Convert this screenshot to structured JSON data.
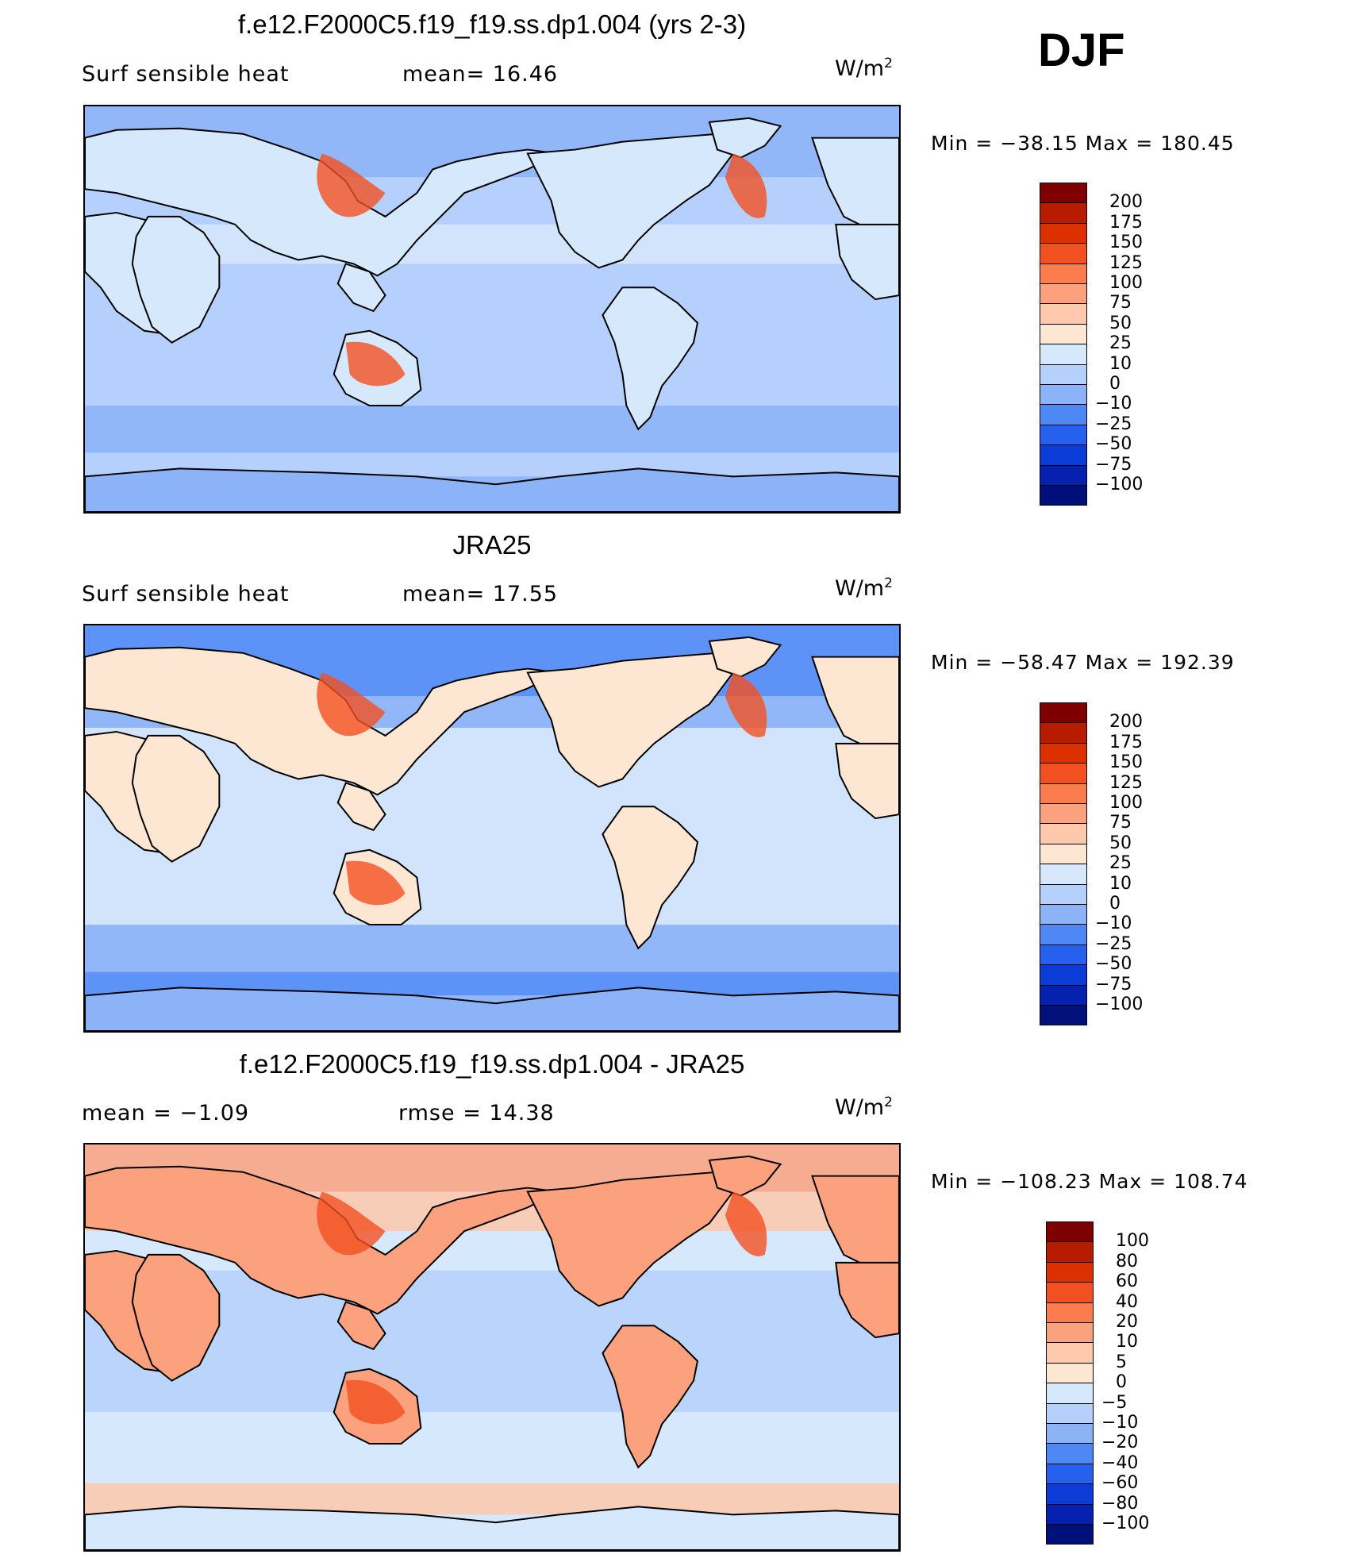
{
  "season": "DJF",
  "colors": {
    "ocean_base": "#a8c8f8",
    "land_outline": "#000000"
  },
  "panels": [
    {
      "id": "model",
      "title": "f.e12.F2000C5.f19_f19.ss.dp1.004 (yrs 2-3)",
      "left_text": "Surf  sensible  heat",
      "stat_text": "mean=   16.46",
      "units": "W/m",
      "units_sup": "2",
      "minmax": "Min  =  −38.15  Max  =  180.45",
      "colorbar": {
        "labels": [
          "200",
          "175",
          "150",
          "125",
          "100",
          "75",
          "50",
          "25",
          "10",
          "0",
          "−10",
          "−25",
          "−50",
          "−75",
          "−100"
        ],
        "colors": [
          "#7f0000",
          "#b81c00",
          "#dc3000",
          "#f25020",
          "#fb7c4c",
          "#fca17e",
          "#fdc8ac",
          "#fde6d2",
          "#d6e8fc",
          "#b5d0fb",
          "#8cb3f8",
          "#4e88f4",
          "#2660ee",
          "#0c3cd8",
          "#0620b0",
          "#00107a"
        ]
      }
    },
    {
      "id": "obs",
      "title": "JRA25",
      "left_text": "Surf  sensible  heat",
      "stat_text": "mean=   17.55",
      "units": "W/m",
      "units_sup": "2",
      "minmax": "Min  =  −58.47  Max  =  192.39",
      "colorbar": {
        "labels": [
          "200",
          "175",
          "150",
          "125",
          "100",
          "75",
          "50",
          "25",
          "10",
          "0",
          "−10",
          "−25",
          "−50",
          "−75",
          "−100"
        ],
        "colors": [
          "#7f0000",
          "#b81c00",
          "#dc3000",
          "#f25020",
          "#fb7c4c",
          "#fca17e",
          "#fdc8ac",
          "#fde6d2",
          "#d6e8fc",
          "#b5d0fb",
          "#8cb3f8",
          "#4e88f4",
          "#2660ee",
          "#0c3cd8",
          "#0620b0",
          "#00107a"
        ]
      }
    },
    {
      "id": "diff",
      "title": "f.e12.F2000C5.f19_f19.ss.dp1.004 - JRA25",
      "left_text": "mean  =    −1.09",
      "stat_text": "rmse  =    14.38",
      "units": "W/m",
      "units_sup": "2",
      "minmax": "Min  =  −108.23  Max  =  108.74",
      "colorbar": {
        "labels": [
          "100",
          "80",
          "60",
          "40",
          "20",
          "10",
          "5",
          "0",
          "−5",
          "−10",
          "−20",
          "−40",
          "−60",
          "−80",
          "−100"
        ],
        "colors": [
          "#7f0000",
          "#b81c00",
          "#dc3000",
          "#f25020",
          "#fb7c4c",
          "#fca17e",
          "#fdc8ac",
          "#fde6d2",
          "#d6e8fc",
          "#b5d0fb",
          "#8cb3f8",
          "#4e88f4",
          "#2660ee",
          "#0c3cd8",
          "#0620b0",
          "#00107a"
        ]
      }
    }
  ]
}
